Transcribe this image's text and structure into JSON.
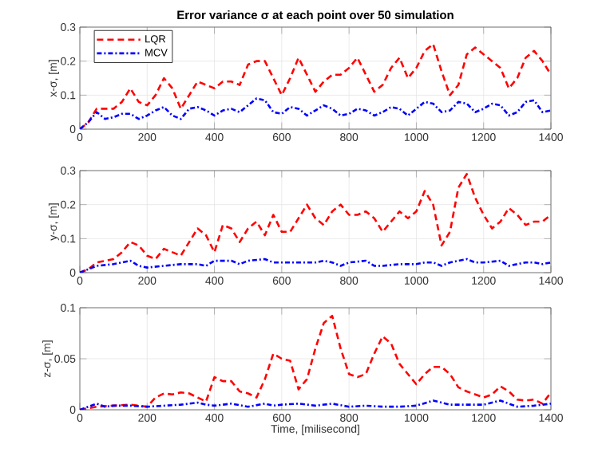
{
  "chart_data": [
    {
      "type": "line",
      "title": "Error variance σ at each point over 50 simulation",
      "ylabel": "x-σ, [m]",
      "xlim": [
        0,
        1400
      ],
      "xticks": [
        0,
        200,
        400,
        600,
        800,
        1000,
        1200,
        1400
      ],
      "ylim": [
        0,
        0.3
      ],
      "yticks": [
        0,
        0.1,
        0.2,
        0.3
      ],
      "grid": true,
      "legend": "top left",
      "series": [
        {
          "name": "LQR",
          "color": "#ff0000",
          "line_style": "dashed",
          "x": [
            0,
            25,
            50,
            75,
            100,
            125,
            150,
            175,
            200,
            225,
            250,
            275,
            300,
            325,
            350,
            375,
            400,
            425,
            450,
            475,
            500,
            525,
            550,
            575,
            600,
            625,
            650,
            675,
            700,
            725,
            750,
            775,
            800,
            825,
            850,
            875,
            900,
            925,
            950,
            975,
            1000,
            1025,
            1050,
            1075,
            1100,
            1125,
            1150,
            1175,
            1200,
            1225,
            1250,
            1275,
            1300,
            1325,
            1350,
            1375,
            1400
          ],
          "values": [
            0,
            0.02,
            0.06,
            0.06,
            0.06,
            0.08,
            0.12,
            0.08,
            0.07,
            0.1,
            0.15,
            0.12,
            0.06,
            0.1,
            0.14,
            0.13,
            0.12,
            0.14,
            0.14,
            0.13,
            0.19,
            0.2,
            0.2,
            0.15,
            0.1,
            0.15,
            0.21,
            0.16,
            0.11,
            0.14,
            0.16,
            0.16,
            0.18,
            0.21,
            0.16,
            0.11,
            0.13,
            0.18,
            0.21,
            0.15,
            0.18,
            0.23,
            0.25,
            0.17,
            0.1,
            0.13,
            0.22,
            0.24,
            0.22,
            0.2,
            0.18,
            0.12,
            0.15,
            0.21,
            0.23,
            0.2,
            0.16
          ]
        },
        {
          "name": "MCV",
          "color": "#0000ff",
          "line_style": "dashdot",
          "x": [
            0,
            25,
            50,
            75,
            100,
            125,
            150,
            175,
            200,
            225,
            250,
            275,
            300,
            325,
            350,
            375,
            400,
            425,
            450,
            475,
            500,
            525,
            550,
            575,
            600,
            625,
            650,
            675,
            700,
            725,
            750,
            775,
            800,
            825,
            850,
            875,
            900,
            925,
            950,
            975,
            1000,
            1025,
            1050,
            1075,
            1100,
            1125,
            1150,
            1175,
            1200,
            1225,
            1250,
            1275,
            1300,
            1325,
            1350,
            1375,
            1400
          ],
          "values": [
            0,
            0.02,
            0.05,
            0.03,
            0.035,
            0.045,
            0.045,
            0.03,
            0.04,
            0.055,
            0.065,
            0.04,
            0.03,
            0.06,
            0.065,
            0.055,
            0.04,
            0.055,
            0.06,
            0.05,
            0.07,
            0.09,
            0.085,
            0.05,
            0.045,
            0.065,
            0.06,
            0.04,
            0.055,
            0.07,
            0.06,
            0.04,
            0.045,
            0.06,
            0.055,
            0.04,
            0.05,
            0.065,
            0.06,
            0.04,
            0.06,
            0.08,
            0.075,
            0.05,
            0.055,
            0.08,
            0.075,
            0.05,
            0.06,
            0.075,
            0.07,
            0.04,
            0.05,
            0.08,
            0.085,
            0.05,
            0.055
          ]
        }
      ]
    },
    {
      "type": "line",
      "ylabel": "y-σ, [m]",
      "xlim": [
        0,
        1400
      ],
      "xticks": [
        0,
        200,
        400,
        600,
        800,
        1000,
        1200,
        1400
      ],
      "ylim": [
        0,
        0.3
      ],
      "yticks": [
        0,
        0.1,
        0.2,
        0.3
      ],
      "grid": true,
      "series": [
        {
          "color": "#ff0000",
          "line_style": "dashed",
          "x": [
            0,
            25,
            50,
            100,
            125,
            150,
            175,
            200,
            225,
            250,
            275,
            300,
            325,
            350,
            375,
            400,
            425,
            450,
            475,
            500,
            525,
            550,
            575,
            600,
            625,
            650,
            675,
            700,
            725,
            750,
            775,
            800,
            825,
            850,
            875,
            900,
            925,
            950,
            975,
            1000,
            1025,
            1050,
            1075,
            1100,
            1125,
            1150,
            1175,
            1200,
            1225,
            1250,
            1275,
            1300,
            1325,
            1350,
            1375,
            1400
          ],
          "values": [
            0,
            0.01,
            0.03,
            0.04,
            0.06,
            0.09,
            0.08,
            0.05,
            0.04,
            0.07,
            0.06,
            0.05,
            0.09,
            0.13,
            0.11,
            0.06,
            0.14,
            0.13,
            0.09,
            0.13,
            0.15,
            0.11,
            0.17,
            0.12,
            0.12,
            0.16,
            0.2,
            0.16,
            0.14,
            0.18,
            0.2,
            0.17,
            0.17,
            0.18,
            0.16,
            0.12,
            0.15,
            0.18,
            0.16,
            0.18,
            0.24,
            0.2,
            0.08,
            0.12,
            0.25,
            0.29,
            0.22,
            0.17,
            0.13,
            0.15,
            0.19,
            0.17,
            0.14,
            0.15,
            0.15,
            0.17
          ]
        },
        {
          "color": "#0000ff",
          "line_style": "dashdot",
          "x": [
            0,
            50,
            100,
            150,
            175,
            200,
            250,
            300,
            350,
            375,
            400,
            450,
            475,
            500,
            550,
            575,
            600,
            650,
            700,
            725,
            750,
            775,
            800,
            850,
            875,
            900,
            950,
            1000,
            1025,
            1050,
            1075,
            1100,
            1150,
            1175,
            1200,
            1250,
            1275,
            1300,
            1325,
            1350,
            1375,
            1400
          ],
          "values": [
            0,
            0.02,
            0.025,
            0.035,
            0.02,
            0.015,
            0.02,
            0.025,
            0.025,
            0.02,
            0.035,
            0.035,
            0.025,
            0.035,
            0.04,
            0.03,
            0.03,
            0.03,
            0.03,
            0.035,
            0.03,
            0.02,
            0.03,
            0.035,
            0.02,
            0.02,
            0.025,
            0.025,
            0.03,
            0.03,
            0.02,
            0.03,
            0.04,
            0.03,
            0.03,
            0.035,
            0.02,
            0.025,
            0.03,
            0.03,
            0.025,
            0.03
          ]
        }
      ]
    },
    {
      "type": "line",
      "xlabel": "Time, [milisecond]",
      "ylabel": "z-σ, [m]",
      "xlim": [
        0,
        1400
      ],
      "xticks": [
        0,
        200,
        400,
        600,
        800,
        1000,
        1200,
        1400
      ],
      "ylim": [
        0,
        0.1
      ],
      "yticks": [
        0,
        0.05,
        0.1
      ],
      "grid": true,
      "series": [
        {
          "color": "#ff0000",
          "line_style": "dashed",
          "x": [
            0,
            50,
            100,
            150,
            200,
            225,
            250,
            275,
            300,
            325,
            350,
            375,
            400,
            425,
            450,
            475,
            500,
            525,
            550,
            575,
            600,
            625,
            650,
            675,
            700,
            725,
            750,
            775,
            800,
            825,
            850,
            875,
            900,
            925,
            950,
            975,
            1000,
            1025,
            1050,
            1075,
            1100,
            1125,
            1150,
            1175,
            1200,
            1225,
            1250,
            1275,
            1300,
            1325,
            1350,
            1375,
            1400
          ],
          "values": [
            0,
            0.003,
            0.004,
            0.005,
            0.003,
            0.012,
            0.016,
            0.015,
            0.017,
            0.016,
            0.012,
            0.008,
            0.032,
            0.028,
            0.028,
            0.018,
            0.016,
            0.012,
            0.03,
            0.055,
            0.05,
            0.048,
            0.02,
            0.03,
            0.06,
            0.085,
            0.092,
            0.06,
            0.035,
            0.032,
            0.035,
            0.055,
            0.072,
            0.065,
            0.045,
            0.035,
            0.025,
            0.035,
            0.042,
            0.042,
            0.035,
            0.022,
            0.018,
            0.015,
            0.012,
            0.015,
            0.023,
            0.018,
            0.01,
            0.009,
            0.01,
            0.006,
            0.017
          ]
        },
        {
          "color": "#0000ff",
          "line_style": "dashdot",
          "x": [
            0,
            50,
            75,
            100,
            150,
            200,
            250,
            300,
            350,
            375,
            400,
            450,
            500,
            550,
            575,
            600,
            650,
            700,
            750,
            800,
            850,
            900,
            950,
            1000,
            1050,
            1100,
            1150,
            1200,
            1250,
            1300,
            1350,
            1400
          ],
          "values": [
            0,
            0.006,
            0.003,
            0.004,
            0.004,
            0.003,
            0.004,
            0.005,
            0.007,
            0.005,
            0.004,
            0.006,
            0.003,
            0.006,
            0.004,
            0.005,
            0.006,
            0.004,
            0.006,
            0.003,
            0.004,
            0.003,
            0.003,
            0.004,
            0.009,
            0.005,
            0.005,
            0.005,
            0.009,
            0.003,
            0.004,
            0.006
          ]
        }
      ]
    }
  ]
}
